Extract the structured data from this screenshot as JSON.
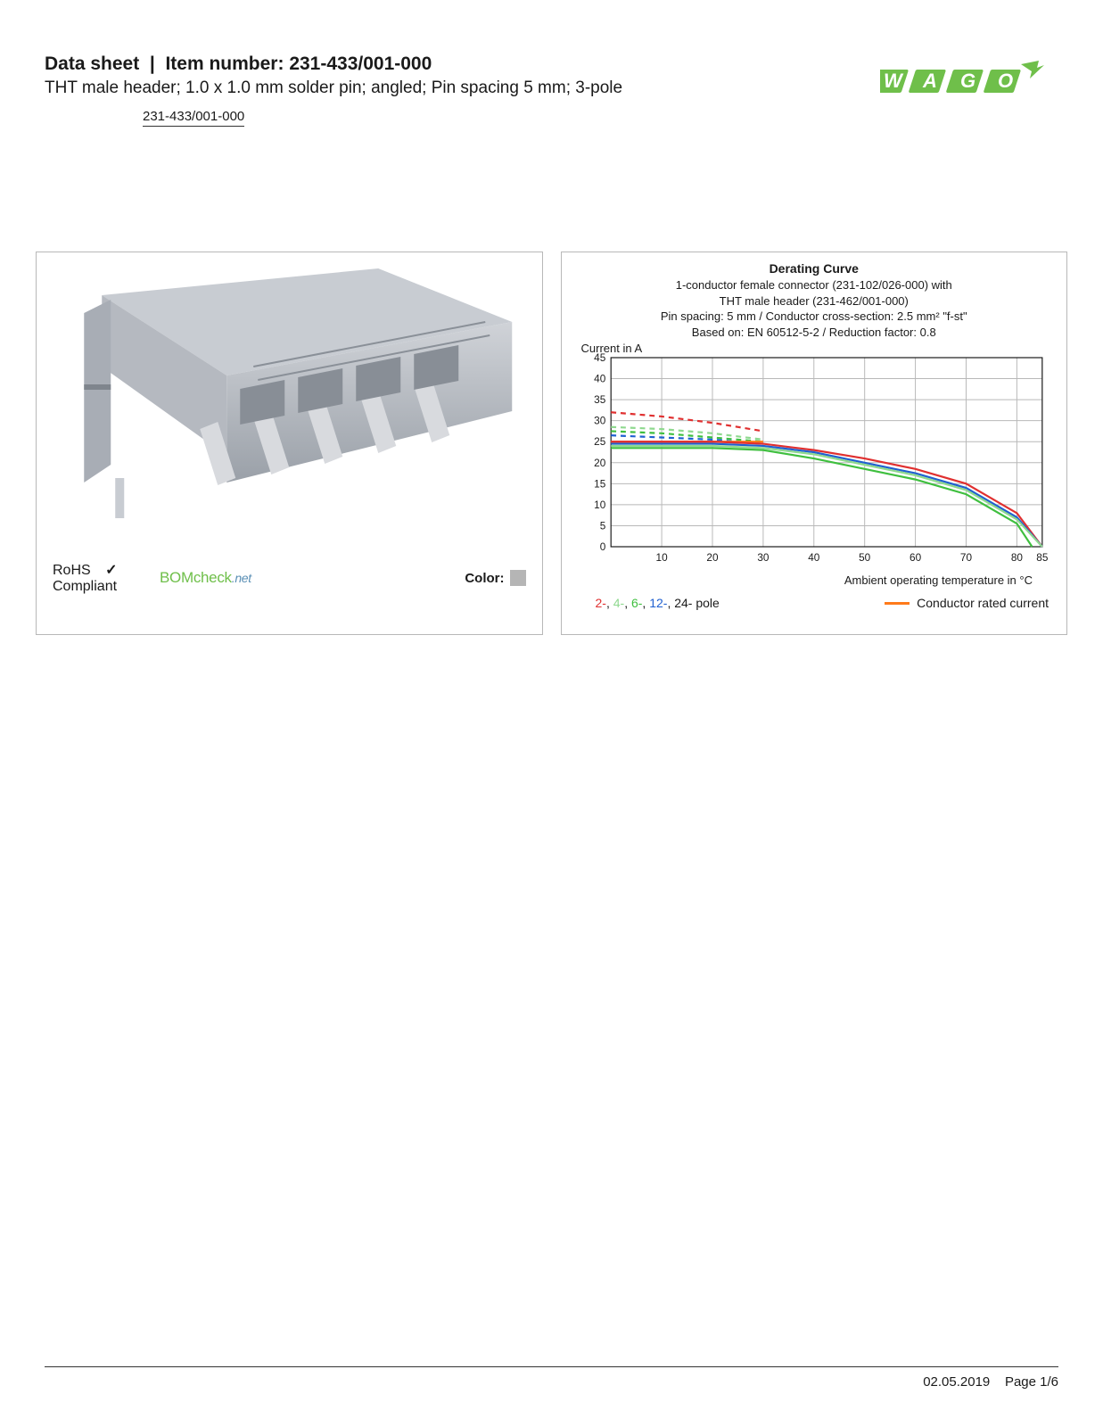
{
  "header": {
    "label_datasheet": "Data sheet",
    "label_itemnum": "Item number:",
    "item_number": "231-433/001-000",
    "subtitle": "THT male header; 1.0 x 1.0 mm solder pin; angled; Pin spacing 5 mm; 3-pole",
    "item_tag": "231-433/001-000"
  },
  "logo": {
    "text": "WAGO",
    "color": "#6fbf4a"
  },
  "left_panel": {
    "rohs": "RoHS",
    "compliant": "Compliant",
    "check": "✓",
    "bomcheck_main": "BOMcheck",
    "bomcheck_net": ".net",
    "color_label": "Color:",
    "swatch_color": "#b5b5b5",
    "product_body_color": "#b5b9c0",
    "product_shadow_color": "#9aa0a8"
  },
  "chart": {
    "title": "Derating Curve",
    "sub1": "1-conductor female connector (231-102/026-000) with",
    "sub2": "THT male header (231-462/001-000)",
    "sub3": "Pin spacing: 5 mm / Conductor cross-section: 2.5 mm² \"f-st\"",
    "sub4": "Based on: EN 60512-5-2 / Reduction factor: 0.8",
    "ylabel": "Current in A",
    "xlabel": "Ambient operating temperature in °C",
    "ylim": [
      0,
      45
    ],
    "ytick_step": 5,
    "ytick_labels": [
      "0",
      "5",
      "10",
      "15",
      "20",
      "25",
      "30",
      "35",
      "40",
      "45"
    ],
    "xlim": [
      0,
      85
    ],
    "xtick_positions": [
      10,
      20,
      30,
      40,
      50,
      60,
      70,
      80,
      85
    ],
    "xtick_labels": [
      "10",
      "20",
      "30",
      "40",
      "50",
      "60",
      "70",
      "80",
      "85"
    ],
    "grid_color": "#b8b8b8",
    "background_color": "#ffffff",
    "series": [
      {
        "name": "2-pole-dash",
        "color": "#e03030",
        "dash": true,
        "points": [
          [
            0,
            32
          ],
          [
            10,
            31
          ],
          [
            20,
            29.5
          ],
          [
            30,
            27.5
          ]
        ]
      },
      {
        "name": "4-pole-dash",
        "color": "#8fd98f",
        "dash": true,
        "points": [
          [
            0,
            28.5
          ],
          [
            10,
            28
          ],
          [
            20,
            27
          ],
          [
            30,
            25.5
          ]
        ]
      },
      {
        "name": "6-pole-dash",
        "color": "#3fbf3f",
        "dash": true,
        "points": [
          [
            0,
            27.5
          ],
          [
            10,
            27
          ],
          [
            20,
            26
          ],
          [
            30,
            25
          ]
        ]
      },
      {
        "name": "12-pole-dash",
        "color": "#2060d0",
        "dash": true,
        "points": [
          [
            0,
            26.5
          ],
          [
            10,
            26
          ],
          [
            20,
            25.5
          ],
          [
            30,
            24.5
          ]
        ]
      },
      {
        "name": "rated",
        "color": "#ff7a1a",
        "dash": false,
        "points": [
          [
            0,
            25
          ],
          [
            30,
            25
          ]
        ]
      },
      {
        "name": "2-pole",
        "color": "#e03030",
        "dash": false,
        "points": [
          [
            0,
            25
          ],
          [
            20,
            25
          ],
          [
            30,
            24.5
          ],
          [
            40,
            23
          ],
          [
            50,
            21
          ],
          [
            60,
            18.5
          ],
          [
            70,
            15
          ],
          [
            80,
            8
          ],
          [
            85,
            0
          ]
        ]
      },
      {
        "name": "12-pole",
        "color": "#2060d0",
        "dash": false,
        "points": [
          [
            0,
            24.5
          ],
          [
            20,
            24.5
          ],
          [
            30,
            24
          ],
          [
            40,
            22.5
          ],
          [
            50,
            20
          ],
          [
            60,
            17.5
          ],
          [
            70,
            14
          ],
          [
            80,
            7
          ],
          [
            85,
            0
          ]
        ]
      },
      {
        "name": "4-pole",
        "color": "#8fd98f",
        "dash": false,
        "points": [
          [
            0,
            24
          ],
          [
            20,
            24
          ],
          [
            30,
            23.5
          ],
          [
            40,
            22
          ],
          [
            50,
            19.5
          ],
          [
            60,
            17
          ],
          [
            70,
            13.5
          ],
          [
            80,
            6.5
          ],
          [
            85,
            0
          ]
        ]
      },
      {
        "name": "6-pole",
        "color": "#3fbf3f",
        "dash": false,
        "points": [
          [
            0,
            23.5
          ],
          [
            20,
            23.5
          ],
          [
            30,
            23
          ],
          [
            40,
            21
          ],
          [
            50,
            18.5
          ],
          [
            60,
            16
          ],
          [
            70,
            12.5
          ],
          [
            80,
            5.5
          ],
          [
            83,
            0
          ]
        ]
      }
    ],
    "legend_poles": [
      {
        "label": "2-",
        "color": "#e03030"
      },
      {
        "label": "4-",
        "color": "#8fd98f"
      },
      {
        "label": "6-",
        "color": "#3fbf3f"
      },
      {
        "label": "12-",
        "color": "#2060d0"
      },
      {
        "label": "24-",
        "color": "#1a1a1a"
      }
    ],
    "legend_pole_suffix": " pole",
    "legend_rated_label": "Conductor rated current",
    "legend_rated_color": "#ff7a1a"
  },
  "footer": {
    "date": "02.05.2019",
    "page": "Page 1/6"
  }
}
